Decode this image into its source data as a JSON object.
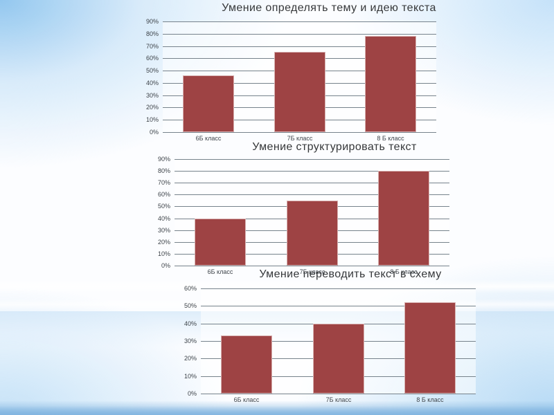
{
  "slide": {
    "type": "presentation-slide",
    "background_accent": "#a9d2f0",
    "bar_color": "#9e4344",
    "grid_color": "#76828b"
  },
  "chart_data": [
    {
      "type": "bar",
      "title": "Умение определять тему и идею текста",
      "categories": [
        "6Б класс",
        "7Б класс",
        "8 Б класс"
      ],
      "values": [
        46,
        65,
        78
      ],
      "value_format": "percent",
      "ylim": [
        0,
        90
      ],
      "ytick_step": 10,
      "yticks": [
        "0%",
        "10%",
        "20%",
        "30%",
        "40%",
        "50%",
        "60%",
        "70%",
        "80%",
        "90%"
      ],
      "xlabel": "",
      "ylabel": "",
      "grid": true,
      "legend": "none",
      "bar_color": "#9e4344"
    },
    {
      "type": "bar",
      "title": "Умение структурировать текст",
      "categories": [
        "6Б класс",
        "7Б класс",
        "8 Б класс"
      ],
      "values": [
        40,
        55,
        80
      ],
      "value_format": "percent",
      "ylim": [
        0,
        90
      ],
      "ytick_step": 10,
      "yticks": [
        "0%",
        "10%",
        "20%",
        "30%",
        "40%",
        "50%",
        "60%",
        "70%",
        "80%",
        "90%"
      ],
      "xlabel": "",
      "ylabel": "",
      "grid": true,
      "legend": "none",
      "bar_color": "#9e4344"
    },
    {
      "type": "bar",
      "title": "Умение переводить текст в схему",
      "categories": [
        "6Б класс",
        "7Б класс",
        "8 Б класс"
      ],
      "values": [
        33,
        40,
        52
      ],
      "value_format": "percent",
      "ylim": [
        0,
        60
      ],
      "ytick_step": 10,
      "yticks": [
        "0%",
        "10%",
        "20%",
        "30%",
        "40%",
        "50%",
        "60%"
      ],
      "xlabel": "",
      "ylabel": "",
      "grid": true,
      "legend": "none",
      "bar_color": "#9e4344"
    }
  ]
}
